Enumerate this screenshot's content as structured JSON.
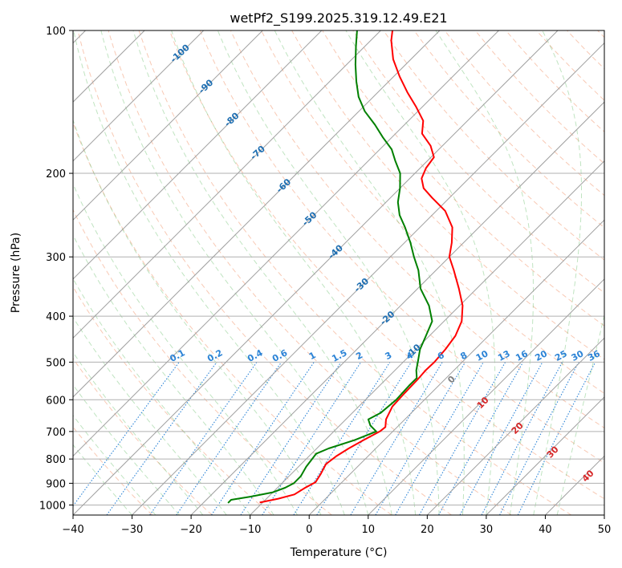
{
  "chart_data": {
    "type": "skew-t",
    "title": "wetPf2_S199.2025.319.12.49.E21",
    "xlabel": "Temperature (°C)",
    "ylabel": "Pressure (hPa)",
    "xlim": [
      -40,
      50
    ],
    "ylim": [
      1050,
      100
    ],
    "x_ticks": [
      -40,
      -30,
      -20,
      -10,
      0,
      10,
      20,
      30,
      40,
      50
    ],
    "x_tick_labels": [
      "−40",
      "−30",
      "−20",
      "−10",
      "0",
      "10",
      "20",
      "30",
      "40",
      "50"
    ],
    "y_ticks": [
      100,
      200,
      300,
      400,
      500,
      600,
      700,
      800,
      900,
      1000
    ],
    "y_tick_labels": [
      "100",
      "200",
      "300",
      "400",
      "500",
      "600",
      "700",
      "800",
      "900",
      "1000"
    ],
    "grid": true,
    "series": [
      {
        "name": "Temperature",
        "color": "#ff0000",
        "points": [
          [
            988,
            -10.5
          ],
          [
            970,
            -8.0
          ],
          [
            950,
            -6.0
          ],
          [
            920,
            -5.3
          ],
          [
            895,
            -4.5
          ],
          [
            860,
            -5.0
          ],
          [
            820,
            -5.8
          ],
          [
            790,
            -5.4
          ],
          [
            760,
            -4.6
          ],
          [
            730,
            -3.5
          ],
          [
            700,
            -2.2
          ],
          [
            685,
            -2.0
          ],
          [
            660,
            -3.2
          ],
          [
            620,
            -4.3
          ],
          [
            580,
            -4.5
          ],
          [
            545,
            -4.6
          ],
          [
            520,
            -4.8
          ],
          [
            500,
            -4.7
          ],
          [
            470,
            -5.0
          ],
          [
            440,
            -5.6
          ],
          [
            410,
            -7.0
          ],
          [
            380,
            -9.5
          ],
          [
            350,
            -13.0
          ],
          [
            320,
            -17.0
          ],
          [
            300,
            -20.0
          ],
          [
            280,
            -22.0
          ],
          [
            260,
            -24.5
          ],
          [
            240,
            -28.5
          ],
          [
            225,
            -33.0
          ],
          [
            215,
            -36.0
          ],
          [
            205,
            -38.0
          ],
          [
            195,
            -39.0
          ],
          [
            185,
            -39.5
          ],
          [
            175,
            -42.0
          ],
          [
            165,
            -45.5
          ],
          [
            155,
            -47.5
          ],
          [
            145,
            -51.0
          ],
          [
            135,
            -55.0
          ],
          [
            125,
            -59.0
          ],
          [
            115,
            -63.0
          ],
          [
            105,
            -66.5
          ],
          [
            100,
            -68.0
          ]
        ]
      },
      {
        "name": "Dewpoint",
        "color": "#008000",
        "points": [
          [
            990,
            -15.8
          ],
          [
            975,
            -15.8
          ],
          [
            960,
            -13.0
          ],
          [
            940,
            -10.0
          ],
          [
            920,
            -8.7
          ],
          [
            900,
            -8.0
          ],
          [
            870,
            -8.0
          ],
          [
            830,
            -8.7
          ],
          [
            800,
            -9.0
          ],
          [
            780,
            -9.2
          ],
          [
            760,
            -8.0
          ],
          [
            730,
            -5.0
          ],
          [
            700,
            -2.8
          ],
          [
            680,
            -4.8
          ],
          [
            660,
            -6.2
          ],
          [
            640,
            -5.2
          ],
          [
            600,
            -4.8
          ],
          [
            560,
            -5.0
          ],
          [
            540,
            -5.0
          ],
          [
            520,
            -6.4
          ],
          [
            500,
            -7.5
          ],
          [
            470,
            -9.3
          ],
          [
            440,
            -10.6
          ],
          [
            410,
            -12.0
          ],
          [
            380,
            -15.2
          ],
          [
            350,
            -19.5
          ],
          [
            320,
            -23.0
          ],
          [
            300,
            -26.0
          ],
          [
            280,
            -29.0
          ],
          [
            260,
            -32.5
          ],
          [
            245,
            -35.5
          ],
          [
            230,
            -38.0
          ],
          [
            215,
            -40.0
          ],
          [
            200,
            -42.5
          ],
          [
            188,
            -45.5
          ],
          [
            178,
            -48.0
          ],
          [
            168,
            -51.5
          ],
          [
            158,
            -55.0
          ],
          [
            148,
            -59.0
          ],
          [
            138,
            -62.5
          ],
          [
            128,
            -65.5
          ],
          [
            118,
            -68.5
          ],
          [
            108,
            -71.5
          ],
          [
            100,
            -74.0
          ]
        ]
      }
    ],
    "isotherm_labels": [
      {
        "value": -100,
        "text": "-100"
      },
      {
        "value": -90,
        "text": "-90"
      },
      {
        "value": -80,
        "text": "-80"
      },
      {
        "value": -70,
        "text": "-70"
      },
      {
        "value": -60,
        "text": "-60"
      },
      {
        "value": -50,
        "text": "-50"
      },
      {
        "value": -40,
        "text": "-40"
      },
      {
        "value": -30,
        "text": "-30"
      },
      {
        "value": -20,
        "text": "-20"
      },
      {
        "value": -10,
        "text": "-10"
      }
    ],
    "mixing_ratio_labels": [
      "0.1",
      "0.2",
      "0.4",
      "0.6",
      "1",
      "1.5",
      "2",
      "3",
      "4",
      "6",
      "8",
      "10",
      "13",
      "16",
      "20",
      "25",
      "30",
      "36"
    ],
    "mixing_ratio_values": [
      0.1,
      0.2,
      0.4,
      0.6,
      1,
      1.5,
      2,
      3,
      4,
      6,
      8,
      10,
      13,
      16,
      20,
      25,
      30,
      36
    ],
    "moist_adiabat_labels": [
      {
        "value": 0,
        "text": "0",
        "color": "#808080"
      },
      {
        "value": 10,
        "text": "10",
        "color": "#d62728"
      },
      {
        "value": 20,
        "text": "20",
        "color": "#d62728"
      },
      {
        "value": 30,
        "text": "30",
        "color": "#d62728"
      },
      {
        "value": 40,
        "text": "40",
        "color": "#d62728"
      }
    ]
  }
}
